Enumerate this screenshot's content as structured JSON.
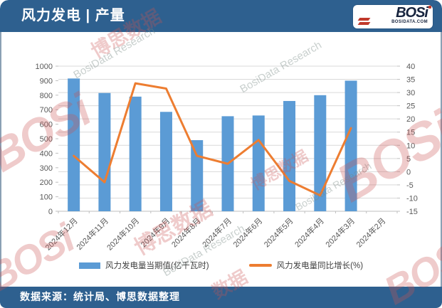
{
  "header": {
    "title": "风力发电 | 产量",
    "bg_color": "#2e608f",
    "logo": {
      "text": "BOSi",
      "subtext": "BOSIDATA.COM",
      "accent_color": "#c0392b"
    }
  },
  "footer": {
    "source": "数据来源：统计局、博思数据整理"
  },
  "watermark": {
    "brand": "BOSi",
    "cn": "博思数据",
    "en": "BosiData Research",
    "short": "数据"
  },
  "chart_data": {
    "type": "combo",
    "categories": [
      "2024年12月",
      "2024年11月",
      "2024年10月",
      "2024年9月",
      "2024年8月",
      "2024年7月",
      "2024年6月",
      "2024年5月",
      "2024年4月",
      "2024年3月",
      "2024年2月"
    ],
    "series": [
      {
        "name": "风力发电量当期值(亿千瓦时)",
        "type": "bar",
        "axis": "left",
        "color": "#5B9BD5",
        "values": [
          915,
          815,
          790,
          685,
          490,
          655,
          660,
          760,
          800,
          900,
          null
        ]
      },
      {
        "name": "风力发电量同比增长(%)",
        "type": "line",
        "axis": "right",
        "color": "#ED7D31",
        "values": [
          6,
          -4,
          33.5,
          31.5,
          6,
          3,
          12,
          -3.5,
          -9,
          16.5,
          null
        ]
      }
    ],
    "left_axis": {
      "min": 0,
      "max": 1000,
      "step": 100
    },
    "right_axis": {
      "min": -15,
      "max": 40,
      "step": 5
    },
    "grid": true,
    "legend_position": "bottom",
    "grid_color": "#d9d9d9",
    "axis_color": "#bfbfbf",
    "tick_label_color": "#595959"
  }
}
